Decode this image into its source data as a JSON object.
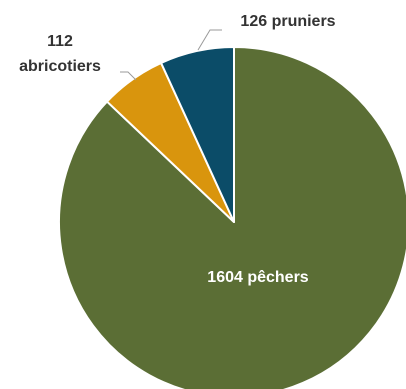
{
  "chart_data": {
    "type": "pie",
    "title": "",
    "categories": [
      "pêchers",
      "abricotiers",
      "pruniers"
    ],
    "values": [
      1604,
      112,
      126
    ],
    "colors": [
      "#5b6e35",
      "#d9950d",
      "#0b4c68"
    ],
    "slice_order_clockwise_from_top": [
      "pêchers",
      "abricotiers",
      "pruniers"
    ],
    "labels": {
      "pechers": "1604 pêchers",
      "abricotiers_value": "112",
      "abricotiers_name": "abricotiers",
      "pruniers": "126 pruniers"
    },
    "label_placement": {
      "pechers": "inside",
      "abricotiers": "outside-top-left",
      "pruniers": "outside-top"
    },
    "slice_border_color": "#ffffff",
    "leader_line_color": "#9a9a9a",
    "legend": "none"
  }
}
